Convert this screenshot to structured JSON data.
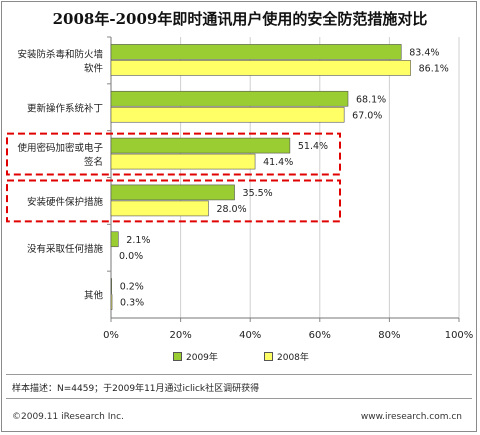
{
  "title": "2008年-2009年即时通讯用户使用的安全防范措施对比",
  "note": "样本描述：N=4459；于2009年11月通过iclick社区调研获得",
  "copyright": "©2009.11 iResearch Inc.",
  "website": "www.iresearch.com.cn",
  "colors": {
    "series2009": "#9acd32",
    "series2008": "#ffff66",
    "highlight": "#e00000"
  },
  "chart_data": {
    "type": "bar",
    "orientation": "horizontal",
    "title": "2008年-2009年即时通讯用户使用的安全防范措施对比",
    "categories": [
      [
        "安装防杀毒和防火墙",
        "软件"
      ],
      [
        "更新操作系统补丁"
      ],
      [
        "使用密码加密或电子",
        "签名"
      ],
      [
        "安装硬件保护措施"
      ],
      [
        "没有采取任何措施"
      ],
      [
        "其他"
      ]
    ],
    "series": [
      {
        "name": "2009年",
        "values": [
          83.4,
          68.1,
          51.4,
          35.5,
          2.1,
          0.2
        ]
      },
      {
        "name": "2008年",
        "values": [
          86.1,
          67.0,
          41.4,
          28.0,
          0.0,
          0.3
        ]
      }
    ],
    "xlim": [
      0,
      100
    ],
    "xticks": [
      "0%",
      "20%",
      "40%",
      "60%",
      "80%",
      "100%"
    ],
    "highlighted_categories": [
      2,
      3
    ],
    "legend_position": "bottom"
  }
}
